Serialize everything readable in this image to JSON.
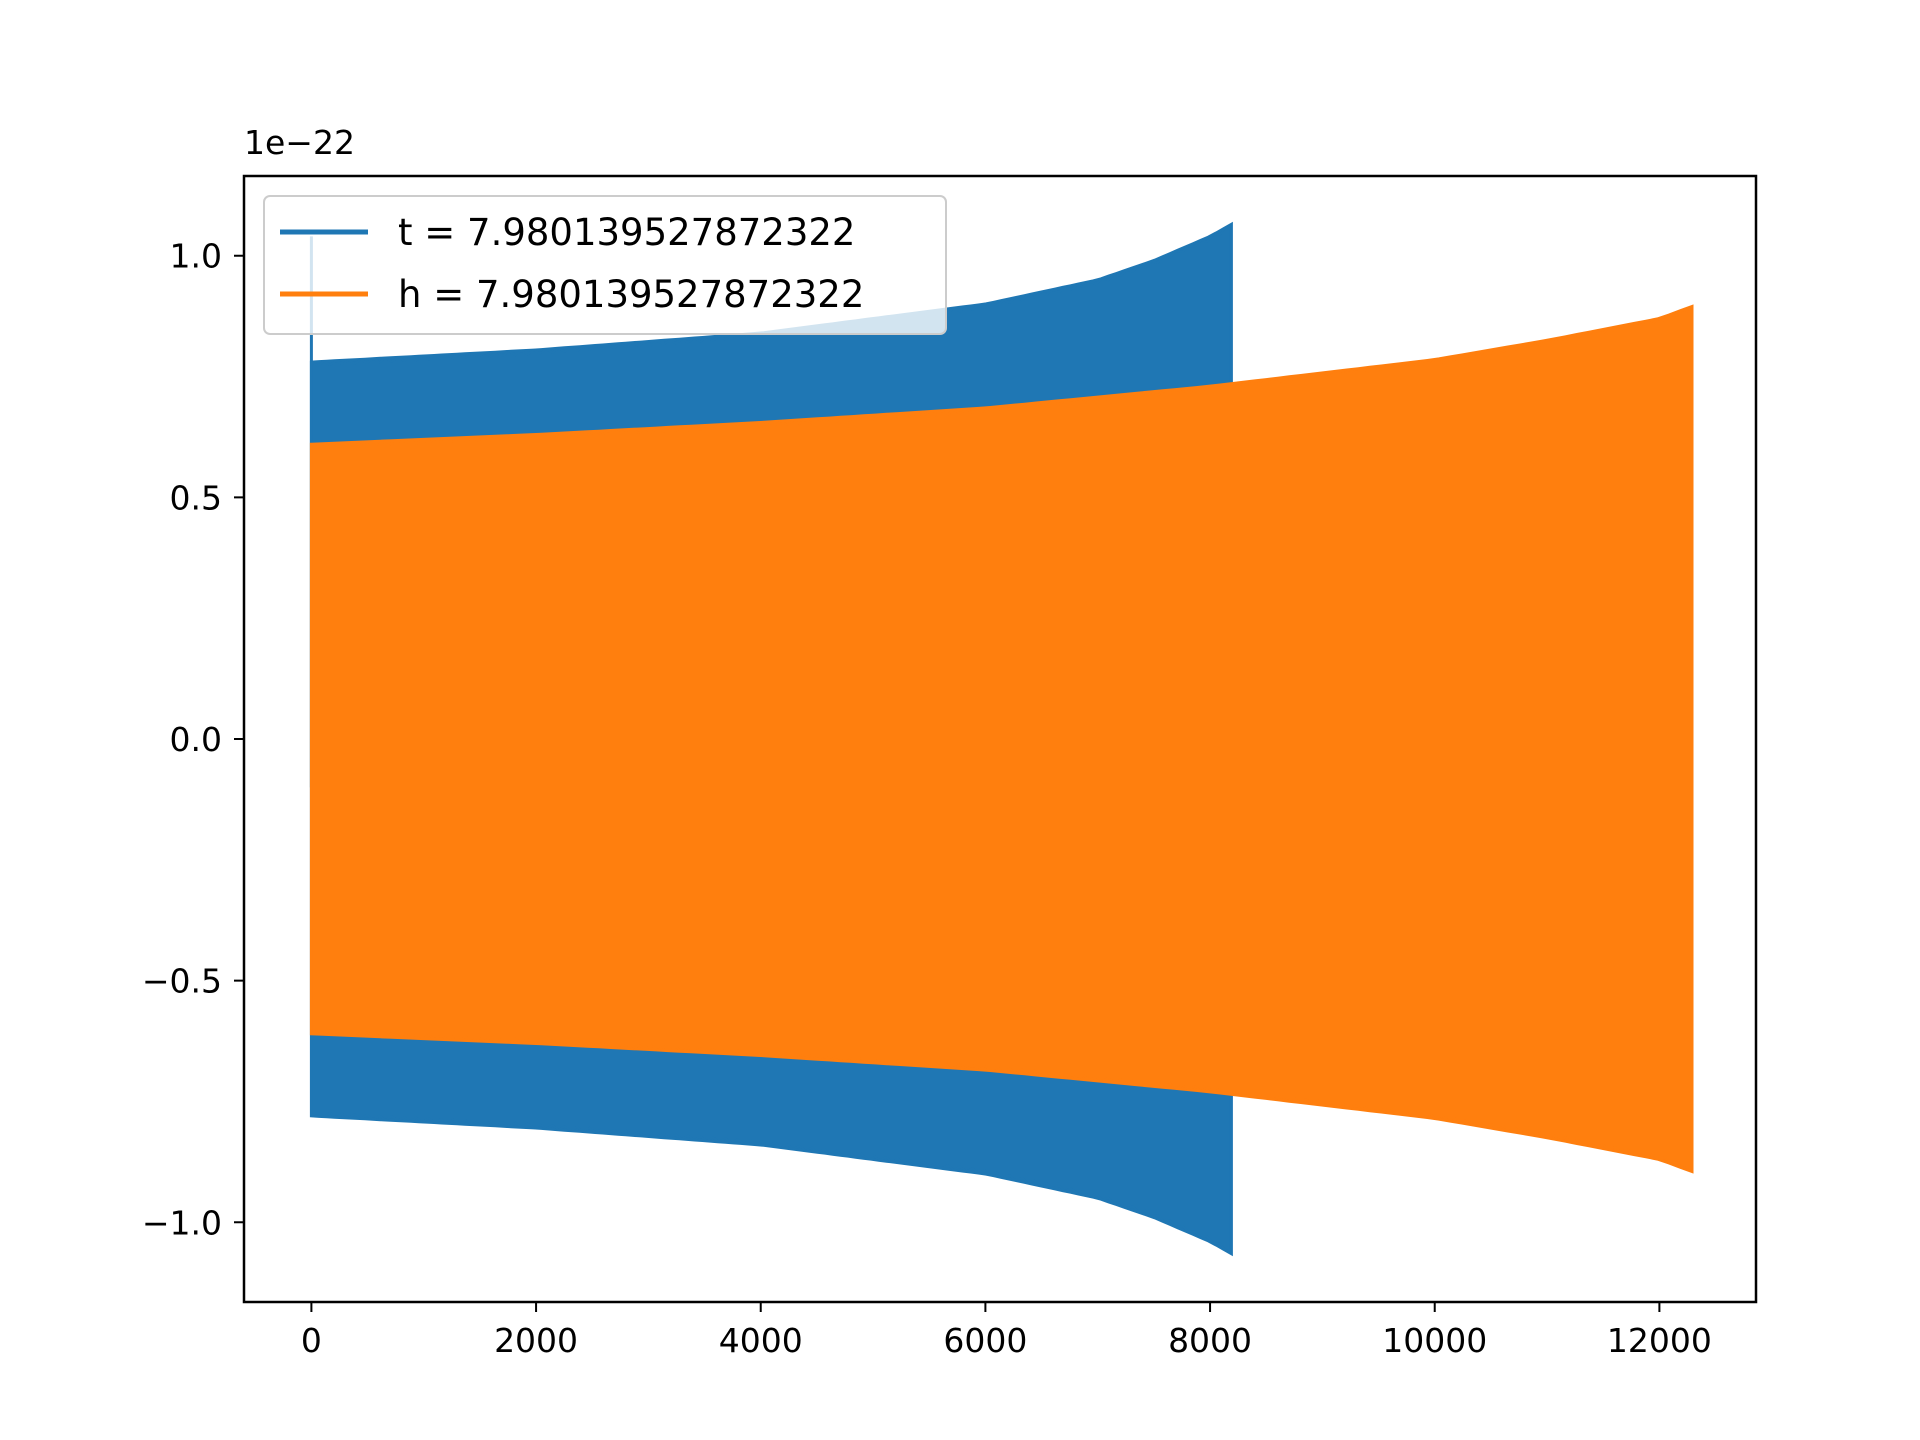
{
  "chart_data": {
    "type": "line",
    "title": "",
    "xlabel": "",
    "ylabel": "",
    "y_offset_label": "1e−22",
    "xlim": [
      -600,
      12860
    ],
    "ylim": [
      -1.165,
      1.165
    ],
    "x_ticks": [
      0,
      2000,
      4000,
      6000,
      8000,
      10000,
      12000
    ],
    "x_tick_labels": [
      "0",
      "2000",
      "4000",
      "6000",
      "8000",
      "10000",
      "12000"
    ],
    "y_ticks": [
      -1.0,
      -0.5,
      0.0,
      0.5,
      1.0
    ],
    "y_tick_labels": [
      "−1.0",
      "−0.5",
      "0.0",
      "0.5",
      "1.0"
    ],
    "grid": false,
    "legend_position": "top-left",
    "series": [
      {
        "name": "t = 7.980139527872322",
        "color": "#1f77b4",
        "style": "oscillating",
        "x_start": 0,
        "x_end": 8190,
        "initial_spike": 1.04,
        "envelope": {
          "x": [
            0,
            2000,
            4000,
            6000,
            7000,
            7500,
            8000,
            8190
          ],
          "y": [
            0.78,
            0.805,
            0.84,
            0.9,
            0.95,
            0.99,
            1.04,
            1.065
          ]
        }
      },
      {
        "name": "h = 7.980139527872322",
        "color": "#ff7f0e",
        "style": "oscillating",
        "x_start": 0,
        "x_end": 12290,
        "envelope": {
          "x": [
            0,
            2000,
            4000,
            6000,
            8000,
            10000,
            11000,
            12000,
            12290
          ],
          "y": [
            0.61,
            0.63,
            0.655,
            0.685,
            0.73,
            0.785,
            0.825,
            0.87,
            0.895
          ]
        }
      }
    ]
  }
}
